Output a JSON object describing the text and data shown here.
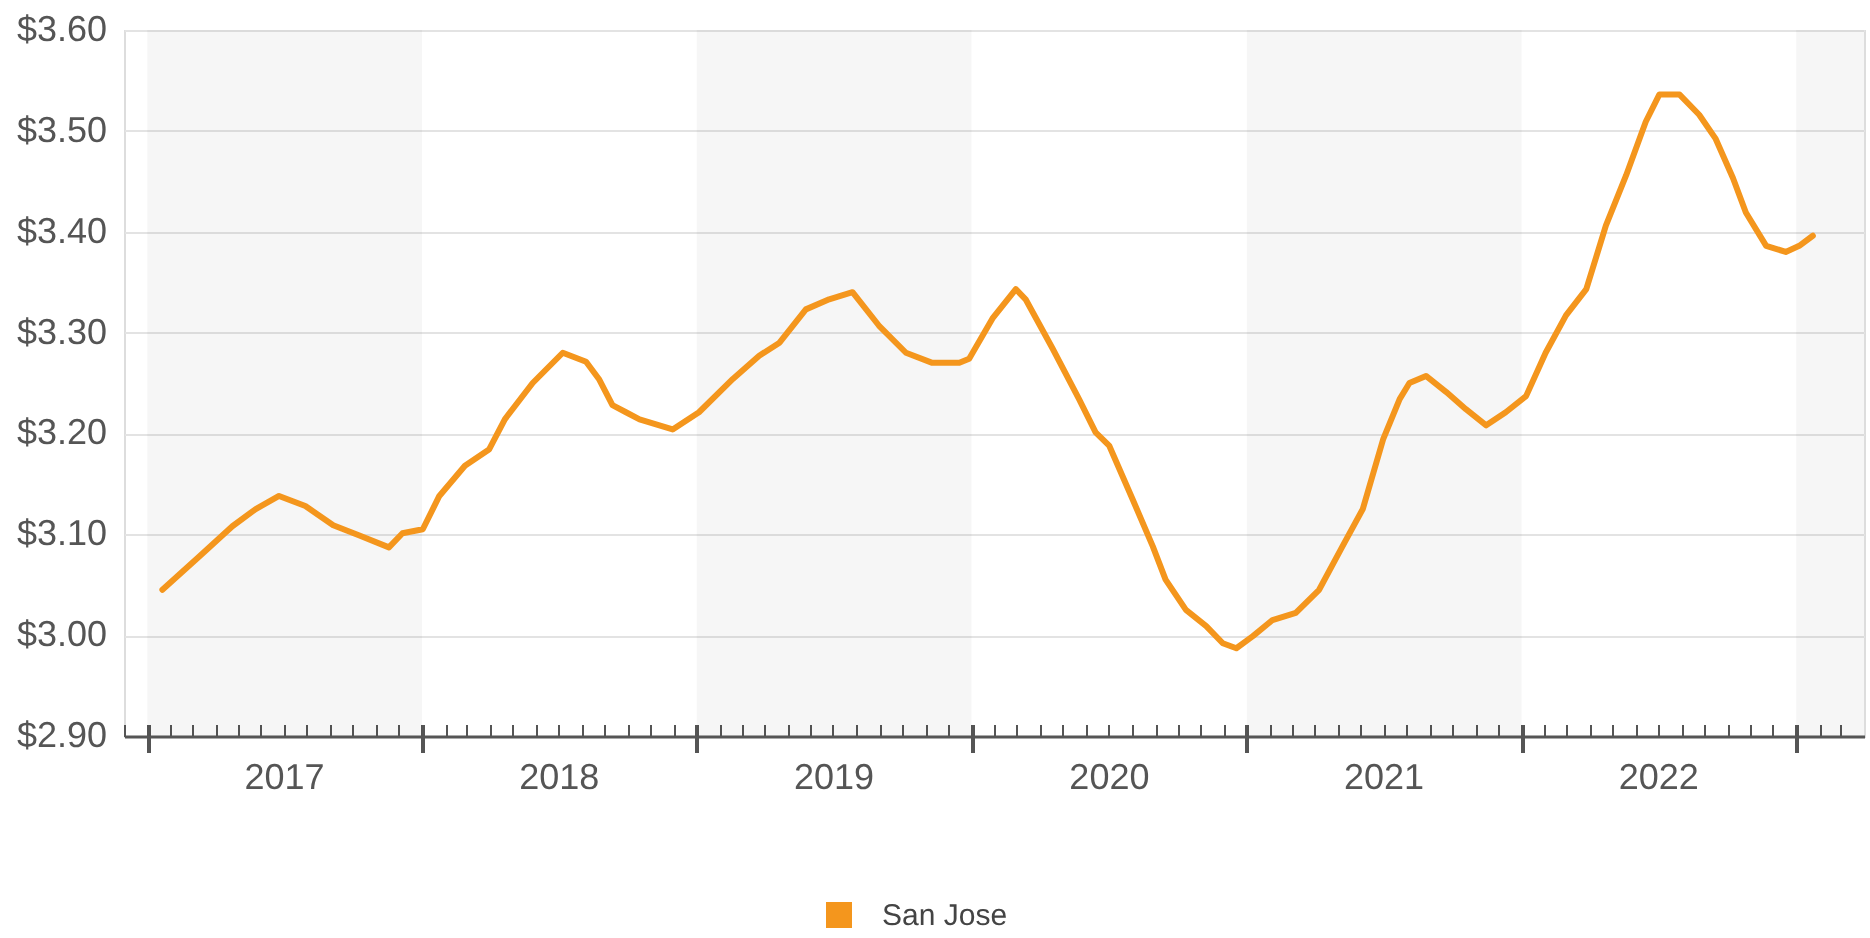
{
  "chart_data": {
    "type": "line",
    "x": [
      "2017-01-21",
      "2017-03-11",
      "2017-04-24",
      "2017-05-25",
      "2017-06-25",
      "2017-07-30",
      "2017-09-05",
      "2017-10-09",
      "2017-11-18",
      "2017-12-06",
      "2018-01-02",
      "2018-01-24",
      "2018-02-27",
      "2018-03-31",
      "2018-04-21",
      "2018-05-28",
      "2018-07-07",
      "2018-08-07",
      "2018-08-24",
      "2018-09-11",
      "2018-09-29",
      "2018-10-17",
      "2018-11-30",
      "2019-01-04",
      "2019-02-18",
      "2019-03-25",
      "2019-04-21",
      "2019-05-26",
      "2019-06-26",
      "2019-07-27",
      "2019-08-31",
      "2019-10-06",
      "2019-11-10",
      "2019-12-16",
      "2019-12-29",
      "2020-01-29",
      "2020-02-29",
      "2020-03-13",
      "2020-04-18",
      "2020-05-23",
      "2020-06-14",
      "2020-07-02",
      "2020-08-02",
      "2020-08-29",
      "2020-09-15",
      "2020-10-12",
      "2020-11-08",
      "2020-11-30",
      "2020-12-18",
      "2021-01-09",
      "2021-02-04",
      "2021-03-07",
      "2021-04-07",
      "2021-05-08",
      "2021-06-04",
      "2021-07-01",
      "2021-07-23",
      "2021-08-05",
      "2021-08-27",
      "2021-09-23",
      "2021-10-19",
      "2021-11-15",
      "2021-12-11",
      "2022-01-07",
      "2022-02-02",
      "2022-03-01",
      "2022-03-28",
      "2022-04-23",
      "2022-05-20",
      "2022-06-15",
      "2022-07-03",
      "2022-07-30",
      "2022-08-25",
      "2022-09-16",
      "2022-10-09",
      "2022-10-26",
      "2022-11-22",
      "2022-12-18",
      "2023-01-05",
      "2023-01-23"
    ],
    "series": [
      {
        "name": "San Jose",
        "color": "#f4961d",
        "values": [
          3.045,
          3.078,
          3.108,
          3.125,
          3.138,
          3.128,
          3.109,
          3.099,
          3.087,
          3.101,
          3.105,
          3.138,
          3.168,
          3.184,
          3.214,
          3.25,
          3.28,
          3.271,
          3.254,
          3.228,
          3.221,
          3.214,
          3.204,
          3.221,
          3.254,
          3.277,
          3.29,
          3.323,
          3.333,
          3.34,
          3.307,
          3.28,
          3.27,
          3.27,
          3.274,
          3.314,
          3.343,
          3.333,
          3.284,
          3.234,
          3.201,
          3.188,
          3.135,
          3.088,
          3.055,
          3.025,
          3.009,
          2.992,
          2.987,
          2.999,
          3.015,
          3.022,
          3.045,
          3.088,
          3.125,
          3.194,
          3.234,
          3.25,
          3.257,
          3.241,
          3.224,
          3.208,
          3.221,
          3.237,
          3.28,
          3.317,
          3.343,
          3.406,
          3.456,
          3.509,
          3.536,
          3.536,
          3.516,
          3.492,
          3.453,
          3.419,
          3.386,
          3.38,
          3.386,
          3.396
        ]
      }
    ],
    "xlim": [
      "2016-12-01",
      "2023-04-01"
    ],
    "xticks": [
      {
        "value": "2016-12-01",
        "label": null
      },
      {
        "value": "2017-01-01",
        "label": null
      },
      {
        "value": "2017-02-01",
        "label": null
      },
      {
        "value": "2017-03-01",
        "label": null
      },
      {
        "value": "2017-04-01",
        "label": null
      },
      {
        "value": "2017-05-01",
        "label": null
      },
      {
        "value": "2017-06-01",
        "label": null
      },
      {
        "value": "2017-07-01",
        "label": "2017"
      },
      {
        "value": "2017-08-01",
        "label": null
      },
      {
        "value": "2017-09-01",
        "label": null
      },
      {
        "value": "2017-10-01",
        "label": null
      },
      {
        "value": "2017-11-01",
        "label": null
      },
      {
        "value": "2017-12-01",
        "label": null
      },
      {
        "value": "2018-01-01",
        "label": null
      },
      {
        "value": "2018-02-01",
        "label": null
      },
      {
        "value": "2018-03-01",
        "label": null
      },
      {
        "value": "2018-04-01",
        "label": null
      },
      {
        "value": "2018-05-01",
        "label": null
      },
      {
        "value": "2018-06-01",
        "label": null
      },
      {
        "value": "2018-07-01",
        "label": "2018"
      },
      {
        "value": "2018-08-01",
        "label": null
      },
      {
        "value": "2018-09-01",
        "label": null
      },
      {
        "value": "2018-10-01",
        "label": null
      },
      {
        "value": "2018-11-01",
        "label": null
      },
      {
        "value": "2018-12-01",
        "label": null
      },
      {
        "value": "2019-01-01",
        "label": null
      },
      {
        "value": "2019-02-01",
        "label": null
      },
      {
        "value": "2019-03-01",
        "label": null
      },
      {
        "value": "2019-04-01",
        "label": null
      },
      {
        "value": "2019-05-01",
        "label": null
      },
      {
        "value": "2019-06-01",
        "label": null
      },
      {
        "value": "2019-07-01",
        "label": "2019"
      },
      {
        "value": "2019-08-01",
        "label": null
      },
      {
        "value": "2019-09-01",
        "label": null
      },
      {
        "value": "2019-10-01",
        "label": null
      },
      {
        "value": "2019-11-01",
        "label": null
      },
      {
        "value": "2019-12-01",
        "label": null
      },
      {
        "value": "2020-01-01",
        "label": null
      },
      {
        "value": "2020-02-01",
        "label": null
      },
      {
        "value": "2020-03-01",
        "label": null
      },
      {
        "value": "2020-04-01",
        "label": null
      },
      {
        "value": "2020-05-01",
        "label": null
      },
      {
        "value": "2020-06-01",
        "label": null
      },
      {
        "value": "2020-07-01",
        "label": "2020"
      },
      {
        "value": "2020-08-01",
        "label": null
      },
      {
        "value": "2020-09-01",
        "label": null
      },
      {
        "value": "2020-10-01",
        "label": null
      },
      {
        "value": "2020-11-01",
        "label": null
      },
      {
        "value": "2020-12-01",
        "label": null
      },
      {
        "value": "2021-01-01",
        "label": null
      },
      {
        "value": "2021-02-01",
        "label": null
      },
      {
        "value": "2021-03-01",
        "label": null
      },
      {
        "value": "2021-04-01",
        "label": null
      },
      {
        "value": "2021-05-01",
        "label": null
      },
      {
        "value": "2021-06-01",
        "label": null
      },
      {
        "value": "2021-07-01",
        "label": "2021"
      },
      {
        "value": "2021-08-01",
        "label": null
      },
      {
        "value": "2021-09-01",
        "label": null
      },
      {
        "value": "2021-10-01",
        "label": null
      },
      {
        "value": "2021-11-01",
        "label": null
      },
      {
        "value": "2021-12-01",
        "label": null
      },
      {
        "value": "2022-01-01",
        "label": null
      },
      {
        "value": "2022-02-01",
        "label": null
      },
      {
        "value": "2022-03-01",
        "label": null
      },
      {
        "value": "2022-04-01",
        "label": null
      },
      {
        "value": "2022-05-01",
        "label": null
      },
      {
        "value": "2022-06-01",
        "label": null
      },
      {
        "value": "2022-07-01",
        "label": "2022"
      },
      {
        "value": "2022-08-01",
        "label": null
      },
      {
        "value": "2022-09-01",
        "label": null
      },
      {
        "value": "2022-10-01",
        "label": null
      },
      {
        "value": "2022-11-01",
        "label": null
      },
      {
        "value": "2022-12-01",
        "label": null
      },
      {
        "value": "2023-01-01",
        "label": null
      },
      {
        "value": "2023-02-01",
        "label": null
      },
      {
        "value": "2023-03-01",
        "label": null
      }
    ],
    "ylim": [
      2.9,
      3.6
    ],
    "yticks": [
      {
        "value": 2.9,
        "label": "$2.90"
      },
      {
        "value": 3.0,
        "label": "$3.00"
      },
      {
        "value": 3.1,
        "label": "$3.10"
      },
      {
        "value": 3.2,
        "label": "$3.20"
      },
      {
        "value": 3.3,
        "label": "$3.30"
      },
      {
        "value": 3.4,
        "label": "$3.40"
      },
      {
        "value": 3.5,
        "label": "$3.50"
      },
      {
        "value": 3.6,
        "label": "$3.60"
      }
    ],
    "bands": [
      {
        "axis": "x",
        "from": "2017-01-01",
        "to": "2018-01-01",
        "color": "#f6f6f6"
      },
      {
        "axis": "x",
        "from": "2019-01-01",
        "to": "2020-01-01",
        "color": "#f6f6f6"
      },
      {
        "axis": "x",
        "from": "2021-01-01",
        "to": "2022-01-01",
        "color": "#f6f6f6"
      },
      {
        "axis": "x",
        "from": "2023-01-01",
        "to": "2023-04-01",
        "color": "#f6f6f6"
      }
    ],
    "grid": "y",
    "legend": "bottom"
  }
}
